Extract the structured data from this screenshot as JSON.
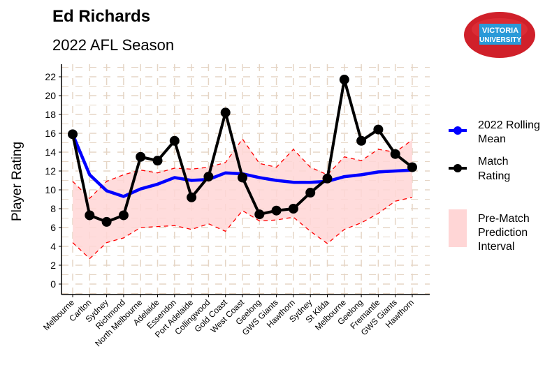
{
  "title": "Ed Richards",
  "subtitle": "2022 AFL Season",
  "logo_text": "VICTORIA UNIVERSITY",
  "colors": {
    "rolling_mean": "#0000ff",
    "match_rating": "#000000",
    "interval_fill": "#ffd6d6",
    "interval_line": "#ff0000",
    "grid": "#e5d5c5"
  },
  "legend": {
    "rolling_mean": "2022 Rolling Mean",
    "match_rating": "Match Rating",
    "interval": "Pre-Match Prediction Interval"
  },
  "chart_data": {
    "type": "line",
    "title": "Ed Richards",
    "subtitle": "2022 AFL Season",
    "xlabel": "",
    "ylabel": "Player Rating",
    "ylim": [
      0,
      22
    ],
    "yticks": [
      0,
      2,
      4,
      6,
      8,
      10,
      12,
      14,
      16,
      18,
      20,
      22
    ],
    "grid": true,
    "legend_placement": "right",
    "categories": [
      "Melbourne",
      "Carlton",
      "Sydney",
      "Richmond",
      "North Melbourne",
      "Adelaide",
      "Essendon",
      "Port Adelaide",
      "Collingwood",
      "Gold Coast",
      "West Coast",
      "Geelong",
      "GWS Giants",
      "Hawthorn",
      "Sydney",
      "St Kilda",
      "Melbourne",
      "Geelong",
      "Fremantle",
      "GWS Giants",
      "Hawthorn"
    ],
    "series": [
      {
        "name": "2022 Rolling Mean",
        "values": [
          15.9,
          11.6,
          9.9,
          9.3,
          10.1,
          10.6,
          11.3,
          11.0,
          11.1,
          11.8,
          11.7,
          11.3,
          11.0,
          10.8,
          10.8,
          10.9,
          11.4,
          11.6,
          11.9,
          12.0,
          12.1
        ]
      },
      {
        "name": "Match Rating",
        "values": [
          15.9,
          7.3,
          6.6,
          7.3,
          13.5,
          13.1,
          15.2,
          9.2,
          11.4,
          18.2,
          11.3,
          7.4,
          7.8,
          8.0,
          9.7,
          11.2,
          21.7,
          15.2,
          16.4,
          13.8,
          12.4
        ]
      }
    ],
    "interval": {
      "name": "Pre-Match Prediction Interval",
      "upper": [
        10.9,
        9.1,
        10.9,
        11.6,
        12.1,
        11.8,
        12.3,
        12.2,
        12.4,
        12.9,
        15.4,
        12.8,
        12.4,
        14.3,
        12.4,
        11.6,
        13.5,
        13.1,
        14.3,
        14.0,
        15.3
      ],
      "lower": [
        4.4,
        2.7,
        4.4,
        4.9,
        6.0,
        6.1,
        6.2,
        5.8,
        6.4,
        5.6,
        7.8,
        6.7,
        6.8,
        7.1,
        5.6,
        4.3,
        5.8,
        6.5,
        7.5,
        8.8,
        9.2
      ]
    }
  }
}
